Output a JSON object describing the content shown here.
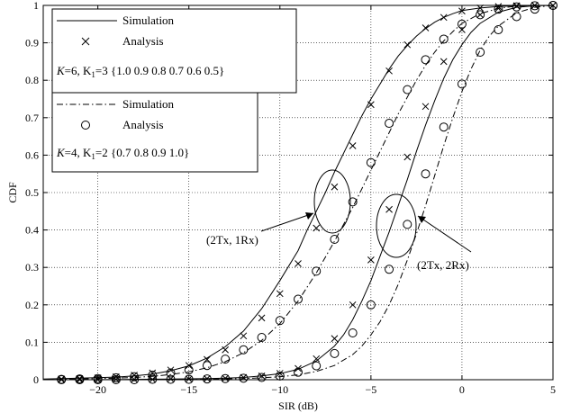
{
  "chart_data": {
    "type": "line",
    "xlabel": "SIR (dB)",
    "ylabel": "CDF",
    "xlim": [
      -23,
      5
    ],
    "ylim": [
      0,
      1
    ],
    "xticks": [
      -20,
      -15,
      -10,
      -5,
      0,
      5
    ],
    "yticks": [
      0,
      0.1,
      0.2,
      0.3,
      0.4,
      0.5,
      0.6,
      0.7,
      0.8,
      0.9,
      1
    ],
    "grid": true,
    "legends": [
      {
        "position": "top-left",
        "entries": [
          {
            "label": "Simulation",
            "style": "solid-line"
          },
          {
            "label": "Analysis",
            "style": "x-marker"
          }
        ],
        "params_prefix": "K",
        "params_text": "=6, K",
        "params_sub": "1",
        "params_rest": "=3 {1.0 0.9 0.8 0.7 0.6 0.5}"
      },
      {
        "position": "upper-left",
        "entries": [
          {
            "label": "Simulation",
            "style": "dash-dot-line"
          },
          {
            "label": "Analysis",
            "style": "circle-marker"
          }
        ],
        "params_prefix": "K",
        "params_text": "=4, K",
        "params_sub": "1",
        "params_rest": "=2 {0.7 0.8 0.9 1.0}"
      }
    ],
    "annotations": [
      {
        "text": "(2Tx, 1Rx)",
        "ellipse_center": [
          -6.5,
          0.475
        ]
      },
      {
        "text": "(2Tx, 2Rx)",
        "ellipse_center": [
          -3.5,
          0.415
        ]
      }
    ],
    "series": [
      {
        "group": "K=6, K1=3",
        "config": "2Tx, 1Rx",
        "kind": "simulation",
        "x": [
          -23,
          -21,
          -19,
          -18,
          -17,
          -16,
          -15,
          -14,
          -13,
          -12,
          -11,
          -10,
          -9,
          -8.5,
          -8,
          -7.5,
          -7,
          -6.5,
          -6,
          -5.5,
          -5,
          -4.5,
          -4,
          -3.5,
          -3,
          -2.5,
          -2,
          -1.5,
          -1,
          -0.5,
          0,
          1,
          2,
          3,
          4,
          5
        ],
        "y": [
          0.002,
          0.004,
          0.007,
          0.01,
          0.015,
          0.024,
          0.037,
          0.058,
          0.088,
          0.13,
          0.19,
          0.265,
          0.345,
          0.4,
          0.45,
          0.5,
          0.555,
          0.605,
          0.655,
          0.705,
          0.75,
          0.79,
          0.83,
          0.865,
          0.893,
          0.918,
          0.938,
          0.955,
          0.968,
          0.978,
          0.986,
          0.993,
          0.997,
          0.999,
          1.0,
          1.0
        ]
      },
      {
        "group": "K=6, K1=3",
        "config": "2Tx, 1Rx",
        "kind": "analysis",
        "x": [
          -22,
          -21,
          -20,
          -19,
          -18,
          -17,
          -16,
          -15,
          -14,
          -13,
          -12,
          -11,
          -10,
          -9,
          -8,
          -7,
          -6,
          -5,
          -4,
          -3,
          -2,
          -1,
          0,
          1,
          2,
          3,
          4,
          5
        ],
        "y": [
          0.002,
          0.003,
          0.005,
          0.008,
          0.012,
          0.018,
          0.026,
          0.038,
          0.054,
          0.08,
          0.117,
          0.165,
          0.23,
          0.31,
          0.405,
          0.515,
          0.625,
          0.735,
          0.825,
          0.895,
          0.94,
          0.968,
          0.985,
          0.993,
          0.997,
          0.999,
          1.0,
          1.0
        ]
      },
      {
        "group": "K=4, K1=2",
        "config": "2Tx, 1Rx",
        "kind": "simulation",
        "x": [
          -23,
          -21,
          -19,
          -18,
          -17,
          -16,
          -15,
          -14,
          -13,
          -12,
          -11,
          -10,
          -9,
          -8,
          -7,
          -6,
          -5.5,
          -5,
          -4.5,
          -4,
          -3.5,
          -3,
          -2.5,
          -2,
          -1.5,
          -1,
          -0.5,
          0,
          1,
          2,
          3,
          4,
          5
        ],
        "y": [
          0.001,
          0.002,
          0.004,
          0.006,
          0.009,
          0.014,
          0.021,
          0.032,
          0.048,
          0.072,
          0.105,
          0.15,
          0.21,
          0.285,
          0.37,
          0.46,
          0.51,
          0.56,
          0.61,
          0.66,
          0.71,
          0.755,
          0.8,
          0.84,
          0.875,
          0.905,
          0.93,
          0.952,
          0.978,
          0.992,
          0.998,
          1.0,
          1.0
        ]
      },
      {
        "group": "K=4, K1=2",
        "config": "2Tx, 1Rx",
        "kind": "analysis",
        "x": [
          -22,
          -21,
          -20,
          -19,
          -18,
          -17,
          -16,
          -15,
          -14,
          -13,
          -12,
          -11,
          -10,
          -9,
          -8,
          -7,
          -6,
          -5,
          -4,
          -3,
          -2,
          -1,
          0,
          1,
          2,
          3,
          4,
          5
        ],
        "y": [
          0.001,
          0.002,
          0.003,
          0.005,
          0.008,
          0.012,
          0.018,
          0.026,
          0.038,
          0.055,
          0.08,
          0.113,
          0.158,
          0.215,
          0.29,
          0.375,
          0.475,
          0.58,
          0.685,
          0.775,
          0.855,
          0.91,
          0.95,
          0.975,
          0.99,
          0.996,
          0.999,
          1.0
        ]
      },
      {
        "group": "K=6, K1=3",
        "config": "2Tx, 2Rx",
        "kind": "simulation",
        "x": [
          -23,
          -20,
          -18,
          -16,
          -14,
          -13,
          -12,
          -11,
          -10,
          -9,
          -8,
          -7,
          -6.5,
          -6,
          -5.5,
          -5,
          -4.5,
          -4,
          -3.5,
          -3,
          -2.5,
          -2,
          -1.5,
          -1,
          -0.5,
          0,
          0.5,
          1,
          2,
          3,
          4,
          5
        ],
        "y": [
          0.0,
          0.0,
          0.001,
          0.002,
          0.003,
          0.004,
          0.006,
          0.01,
          0.016,
          0.028,
          0.05,
          0.09,
          0.12,
          0.16,
          0.21,
          0.265,
          0.33,
          0.395,
          0.465,
          0.535,
          0.61,
          0.68,
          0.745,
          0.805,
          0.855,
          0.895,
          0.928,
          0.952,
          0.982,
          0.995,
          0.999,
          1.0
        ]
      },
      {
        "group": "K=6, K1=3",
        "config": "2Tx, 2Rx",
        "kind": "analysis",
        "x": [
          -22,
          -21,
          -20,
          -19,
          -18,
          -17,
          -16,
          -15,
          -14,
          -13,
          -12,
          -11,
          -10,
          -9,
          -8,
          -7,
          -6,
          -5,
          -4,
          -3,
          -2,
          -1,
          0,
          1,
          2,
          3,
          4,
          5
        ],
        "y": [
          0.0,
          0.0,
          0.0,
          0.001,
          0.001,
          0.001,
          0.002,
          0.002,
          0.003,
          0.004,
          0.006,
          0.01,
          0.017,
          0.03,
          0.056,
          0.11,
          0.2,
          0.32,
          0.455,
          0.595,
          0.73,
          0.85,
          0.935,
          0.975,
          0.992,
          0.998,
          1.0,
          1.0
        ]
      },
      {
        "group": "K=4, K1=2",
        "config": "2Tx, 2Rx",
        "kind": "simulation",
        "x": [
          -23,
          -20,
          -18,
          -16,
          -14,
          -12,
          -11,
          -10,
          -9,
          -8,
          -7,
          -6,
          -5.5,
          -5,
          -4.5,
          -4,
          -3.5,
          -3,
          -2.5,
          -2,
          -1.5,
          -1,
          -0.5,
          0,
          0.5,
          1,
          1.5,
          2,
          3,
          4,
          5
        ],
        "y": [
          0.0,
          0.0,
          0.0,
          0.001,
          0.002,
          0.003,
          0.005,
          0.008,
          0.013,
          0.022,
          0.038,
          0.067,
          0.09,
          0.12,
          0.155,
          0.2,
          0.255,
          0.32,
          0.39,
          0.465,
          0.545,
          0.625,
          0.7,
          0.77,
          0.83,
          0.88,
          0.918,
          0.945,
          0.98,
          0.995,
          1.0
        ]
      },
      {
        "group": "K=4, K1=2",
        "config": "2Tx, 2Rx",
        "kind": "analysis",
        "x": [
          -22,
          -21,
          -20,
          -19,
          -18,
          -17,
          -16,
          -15,
          -14,
          -13,
          -12,
          -11,
          -10,
          -9,
          -8,
          -7,
          -6,
          -5,
          -4,
          -3,
          -2,
          -1,
          0,
          1,
          2,
          3,
          4,
          5
        ],
        "y": [
          0.0,
          0.0,
          0.0,
          0.0,
          0.0,
          0.001,
          0.001,
          0.001,
          0.002,
          0.003,
          0.004,
          0.006,
          0.01,
          0.02,
          0.037,
          0.07,
          0.125,
          0.2,
          0.295,
          0.415,
          0.55,
          0.675,
          0.79,
          0.875,
          0.935,
          0.97,
          0.99,
          1.0
        ]
      }
    ]
  }
}
